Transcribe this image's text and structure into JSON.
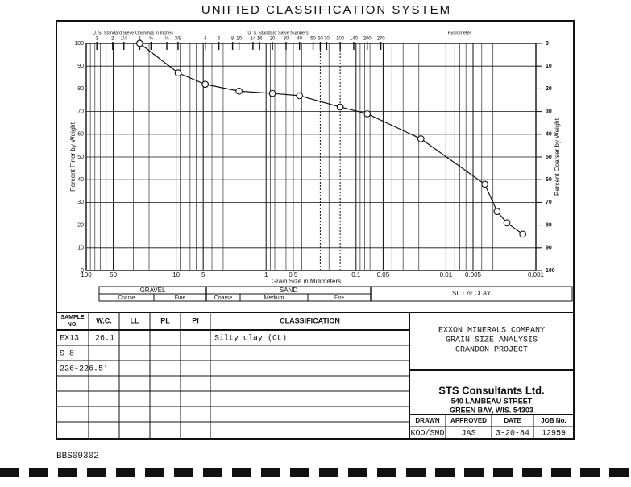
{
  "title": "UNIFIED CLASSIFICATION SYSTEM",
  "chart_data": {
    "type": "line",
    "x_label": "Grain Size in Millimeters",
    "y_label": "Percent Finer by Weight",
    "y2_label": "Percent Coarser by Weight",
    "inches_title": "U. S. Standard Sieve Openings in Inches",
    "inches": [
      "3",
      "2",
      "1½",
      "1",
      "¾",
      "½",
      "3/8"
    ],
    "numbers_title": "U. S. Standard Sieve Numbers",
    "numbers": [
      "4",
      "6",
      "8",
      "10",
      "14",
      "16",
      "20",
      "30",
      "40",
      "50",
      "60",
      "70",
      "100",
      "140",
      "200",
      "270"
    ],
    "hydrometer": "Hydrometer",
    "x": [
      25.4,
      9.5,
      4.75,
      2.0,
      0.85,
      0.425,
      0.15,
      0.075,
      0.019,
      0.0037,
      0.0027,
      0.0021,
      0.0014
    ],
    "values": [
      100,
      87,
      82,
      79,
      78,
      77,
      72,
      69,
      58,
      38,
      26,
      21,
      16
    ],
    "color": "#111111",
    "log_x": true,
    "xlim": [
      100,
      0.001
    ],
    "xticks": [
      100,
      50,
      10,
      5,
      1,
      0.5,
      0.1,
      0.05,
      0.01,
      0.005,
      0.001
    ],
    "ylim": [
      0,
      100
    ],
    "yticks": [
      0,
      10,
      20,
      30,
      40,
      50,
      60,
      70,
      80,
      90,
      100
    ],
    "y2lim": [
      100,
      0
    ],
    "y2ticks": [
      0,
      10,
      20,
      30,
      40,
      50,
      60,
      70,
      80,
      90,
      100
    ],
    "grid": true
  },
  "soil_classes": {
    "gravel": "GRAVEL",
    "gravel_coarse": "Coarse",
    "gravel_fine": "Fine",
    "sand": "SAND",
    "sand_coarse": "Coarse",
    "sand_medium": "Medium",
    "sand_fine": "Fine",
    "silt_clay": "SILT or CLAY"
  },
  "table": {
    "sample_header": [
      "SAMPLE",
      "NO."
    ],
    "headers": [
      "W.C.",
      "LL",
      "PL",
      "PI",
      "CLASSIFICATION"
    ],
    "rows": [
      {
        "sample": "EX13",
        "wc": "26.1",
        "classification": "Silty clay (CL)"
      },
      {
        "sample": "S-8"
      },
      {
        "sample": "226-226.5'"
      }
    ]
  },
  "project": [
    "EXXON MINERALS COMPANY",
    "GRAIN SIZE ANALYSIS",
    "CRANDON PROJECT"
  ],
  "firm": {
    "name": "STS Consultants Ltd.",
    "street": "540 LAMBEAU STREET",
    "city": "GREEN BAY, WIS. 54303"
  },
  "signoff": {
    "headers": [
      "DRAWN",
      "APPROVED",
      "DATE",
      "JOB No."
    ],
    "values": [
      "KOO/SMD",
      "JAS",
      "3-20-84",
      "12959"
    ]
  },
  "footer": "BBS09302"
}
